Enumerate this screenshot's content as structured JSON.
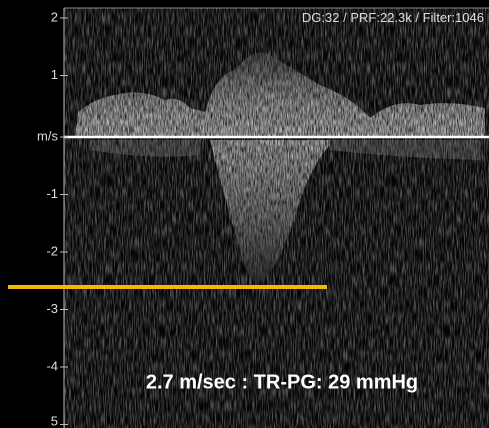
{
  "header": {
    "settings": "DG:32 /   PRF:22.3k / Filter:1046"
  },
  "axis": {
    "labels": [
      "2",
      "1",
      "m/s",
      "-1",
      "-2",
      "-3",
      "-4",
      "5"
    ]
  },
  "annotation": {
    "text": "2.7 m/sec : TR-PG: 29 mmHg"
  }
}
